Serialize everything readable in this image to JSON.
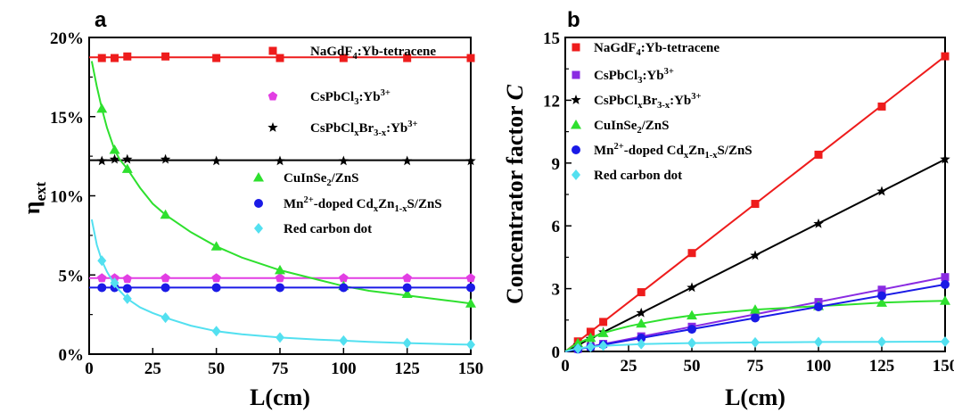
{
  "chart_data": [
    {
      "panel": "a",
      "type": "line",
      "xlabel": "L(cm)",
      "ylabel": "η",
      "ylabel_sub": "ext",
      "xlim": [
        0,
        150
      ],
      "ylim": [
        0,
        20
      ],
      "xticks": [
        0,
        25,
        50,
        75,
        100,
        125,
        150
      ],
      "yticks": [
        0,
        5,
        10,
        15,
        20
      ],
      "ytick_labels": [
        "0%",
        "5%",
        "10%",
        "15%",
        "20%"
      ],
      "grid": false,
      "series": [
        {
          "name": "NaGdF4:Yb-tetracene",
          "legend": [
            [
              "NaGdF",
              ""
            ],
            [
              "4",
              "sub"
            ],
            [
              ":Yb-tetracene",
              ""
            ]
          ],
          "color": "#ee1c1c",
          "marker": "square",
          "x": [
            5,
            10,
            15,
            30,
            50,
            75,
            100,
            125,
            150
          ],
          "y": [
            18.7,
            18.7,
            18.8,
            18.8,
            18.7,
            18.7,
            18.7,
            18.7,
            18.7
          ],
          "curve_x": [
            0,
            150
          ],
          "curve_y": [
            18.75,
            18.75
          ]
        },
        {
          "name": "CsPbCl3:Yb3+",
          "legend": [
            [
              "CsPbCl",
              ""
            ],
            [
              "3",
              "sub"
            ],
            [
              ":Yb",
              ""
            ],
            [
              "3+",
              "sup"
            ]
          ],
          "color": "#e23ee3",
          "marker": "pentagon",
          "x": [
            5,
            10,
            15,
            30,
            50,
            75,
            100,
            125,
            150
          ],
          "y": [
            4.8,
            4.8,
            4.75,
            4.8,
            4.8,
            4.8,
            4.8,
            4.8,
            4.8
          ],
          "curve_x": [
            0,
            150
          ],
          "curve_y": [
            4.8,
            4.8
          ]
        },
        {
          "name": "CsPbClxBr3-x:Yb3+",
          "legend": [
            [
              "CsPbCl",
              ""
            ],
            [
              "x",
              "sub"
            ],
            [
              "Br",
              ""
            ],
            [
              "3-x",
              "sub"
            ],
            [
              ":Yb",
              ""
            ],
            [
              "3+",
              "sup"
            ]
          ],
          "color": "#000000",
          "marker": "star",
          "x": [
            5,
            10,
            15,
            30,
            50,
            75,
            100,
            125,
            150
          ],
          "y": [
            12.2,
            12.3,
            12.3,
            12.3,
            12.2,
            12.2,
            12.2,
            12.2,
            12.2
          ],
          "curve_x": [
            0,
            150
          ],
          "curve_y": [
            12.25,
            12.25
          ]
        },
        {
          "name": "CuInSe2/ZnS",
          "legend": [
            [
              "CuInSe",
              ""
            ],
            [
              "2",
              "sub"
            ],
            [
              "/ZnS",
              ""
            ]
          ],
          "color": "#2ee02e",
          "marker": "triangle",
          "x": [
            5,
            10,
            15,
            30,
            50,
            75,
            100,
            125,
            150
          ],
          "y": [
            15.5,
            12.9,
            11.7,
            8.8,
            6.8,
            5.3,
            4.3,
            3.8,
            3.2
          ],
          "curve_x": [
            1,
            3,
            5,
            7,
            10,
            12,
            15,
            20,
            25,
            30,
            40,
            50,
            60,
            75,
            90,
            100,
            110,
            125,
            140,
            150
          ],
          "curve_y": [
            18.5,
            16.9,
            15.5,
            14.3,
            12.9,
            12.3,
            11.7,
            10.5,
            9.5,
            8.8,
            7.7,
            6.8,
            6.1,
            5.3,
            4.7,
            4.3,
            4.0,
            3.7,
            3.4,
            3.2
          ]
        },
        {
          "name": "Mn2+-doped CdxZn1-xS/ZnS",
          "legend": [
            [
              "Mn",
              ""
            ],
            [
              "2+",
              "sup"
            ],
            [
              "-doped Cd",
              ""
            ],
            [
              "x",
              "sub"
            ],
            [
              "Zn",
              ""
            ],
            [
              "1-x",
              "sub"
            ],
            [
              "S/ZnS",
              ""
            ]
          ],
          "color": "#1a1ae6",
          "marker": "circle",
          "x": [
            5,
            10,
            15,
            30,
            50,
            75,
            100,
            125,
            150
          ],
          "y": [
            4.2,
            4.2,
            4.15,
            4.2,
            4.2,
            4.2,
            4.2,
            4.2,
            4.2
          ],
          "curve_x": [
            0,
            150
          ],
          "curve_y": [
            4.2,
            4.2
          ]
        },
        {
          "name": "Red carbon dot",
          "legend": [
            [
              "Red carbon dot",
              ""
            ]
          ],
          "color": "#53e0f0",
          "marker": "diamond",
          "x": [
            5,
            10,
            15,
            30,
            50,
            75,
            100,
            125,
            150
          ],
          "y": [
            5.9,
            4.5,
            3.5,
            2.3,
            1.45,
            1.05,
            0.85,
            0.7,
            0.6
          ],
          "curve_x": [
            1,
            3,
            5,
            7,
            10,
            12,
            15,
            20,
            25,
            30,
            40,
            50,
            60,
            75,
            90,
            100,
            110,
            125,
            140,
            150
          ],
          "curve_y": [
            8.5,
            6.9,
            5.9,
            5.2,
            4.4,
            4.0,
            3.5,
            2.95,
            2.6,
            2.3,
            1.8,
            1.45,
            1.25,
            1.05,
            0.92,
            0.85,
            0.78,
            0.7,
            0.63,
            0.6
          ]
        }
      ]
    },
    {
      "panel": "b",
      "type": "line",
      "xlabel": "L(cm)",
      "ylabel": "Concentrator factor ",
      "ylabel_italic": "C",
      "xlim": [
        0,
        150
      ],
      "ylim": [
        0,
        15
      ],
      "xticks": [
        0,
        25,
        50,
        75,
        100,
        125,
        150
      ],
      "yticks": [
        0,
        3,
        6,
        9,
        12,
        15
      ],
      "grid": false,
      "series": [
        {
          "name": "NaGdF4:Yb-tetracene",
          "legend": [
            [
              "NaGdF",
              ""
            ],
            [
              "4",
              "sub"
            ],
            [
              ":Yb-tetracene",
              ""
            ]
          ],
          "color": "#ee1c1c",
          "marker": "square",
          "x": [
            5,
            10,
            15,
            30,
            50,
            75,
            100,
            125,
            150
          ],
          "y": [
            0.48,
            0.94,
            1.41,
            2.83,
            4.7,
            7.05,
            9.4,
            11.7,
            14.1
          ],
          "curve_x": [
            0,
            150
          ],
          "curve_y": [
            0,
            14.1
          ]
        },
        {
          "name": "CsPbCl3:Yb3+",
          "legend": [
            [
              "CsPbCl",
              ""
            ],
            [
              "3",
              "sub"
            ],
            [
              ":Yb",
              ""
            ],
            [
              "3+",
              "sup"
            ]
          ],
          "color": "#8a2be2",
          "marker": "square",
          "x": [
            5,
            10,
            15,
            30,
            50,
            75,
            100,
            125,
            150
          ],
          "y": [
            0.12,
            0.24,
            0.36,
            0.72,
            1.18,
            1.77,
            2.36,
            2.95,
            3.55
          ],
          "curve_x": [
            0,
            150
          ],
          "curve_y": [
            0,
            3.55
          ]
        },
        {
          "name": "CsPbClxBr3-x:Yb3+",
          "legend": [
            [
              "CsPbCl",
              ""
            ],
            [
              "x",
              "sub"
            ],
            [
              "Br",
              ""
            ],
            [
              "3-x",
              "sub"
            ],
            [
              ":Yb",
              ""
            ],
            [
              "3+",
              "sup"
            ]
          ],
          "color": "#000000",
          "marker": "star",
          "x": [
            5,
            10,
            15,
            30,
            50,
            75,
            100,
            125,
            150
          ],
          "y": [
            0.31,
            0.61,
            0.92,
            1.84,
            3.05,
            4.58,
            6.1,
            7.65,
            9.18
          ],
          "curve_x": [
            0,
            150
          ],
          "curve_y": [
            0,
            9.18
          ]
        },
        {
          "name": "CuInSe2/ZnS",
          "legend": [
            [
              "CuInSe",
              ""
            ],
            [
              "2",
              "sub"
            ],
            [
              "/ZnS",
              ""
            ]
          ],
          "color": "#2ee02e",
          "marker": "triangle",
          "x": [
            5,
            10,
            15,
            30,
            50,
            75,
            100,
            125,
            150
          ],
          "y": [
            0.39,
            0.65,
            0.88,
            1.33,
            1.72,
            2.0,
            2.17,
            2.33,
            2.42
          ],
          "curve_x": [
            0,
            3,
            5,
            8,
            10,
            15,
            20,
            25,
            30,
            40,
            50,
            60,
            75,
            90,
            100,
            110,
            125,
            140,
            150
          ],
          "curve_y": [
            0,
            0.25,
            0.39,
            0.55,
            0.65,
            0.88,
            1.05,
            1.2,
            1.33,
            1.55,
            1.72,
            1.84,
            2.0,
            2.1,
            2.17,
            2.23,
            2.33,
            2.39,
            2.42
          ]
        },
        {
          "name": "Mn2+-doped CdxZn1-xS/ZnS",
          "legend": [
            [
              "Mn",
              ""
            ],
            [
              "2+",
              "sup"
            ],
            [
              "-doped Cd",
              ""
            ],
            [
              "x",
              "sub"
            ],
            [
              "Zn",
              ""
            ],
            [
              "1-x",
              "sub"
            ],
            [
              "S/ZnS",
              ""
            ]
          ],
          "color": "#1a1ae6",
          "marker": "circle",
          "x": [
            5,
            10,
            15,
            30,
            50,
            75,
            100,
            125,
            150
          ],
          "y": [
            0.11,
            0.21,
            0.32,
            0.64,
            1.06,
            1.6,
            2.13,
            2.66,
            3.2
          ],
          "curve_x": [
            0,
            150
          ],
          "curve_y": [
            0,
            3.2
          ]
        },
        {
          "name": "Red carbon dot",
          "legend": [
            [
              "Red carbon dot",
              ""
            ]
          ],
          "color": "#53e0f0",
          "marker": "diamond",
          "x": [
            5,
            10,
            15,
            30,
            50,
            75,
            100,
            125,
            150
          ],
          "y": [
            0.14,
            0.22,
            0.27,
            0.35,
            0.4,
            0.43,
            0.45,
            0.46,
            0.47
          ],
          "curve_x": [
            0,
            3,
            5,
            8,
            10,
            15,
            20,
            30,
            40,
            50,
            75,
            100,
            125,
            150
          ],
          "curve_y": [
            0,
            0.1,
            0.14,
            0.19,
            0.22,
            0.27,
            0.3,
            0.35,
            0.38,
            0.4,
            0.43,
            0.45,
            0.46,
            0.47
          ]
        }
      ]
    }
  ]
}
